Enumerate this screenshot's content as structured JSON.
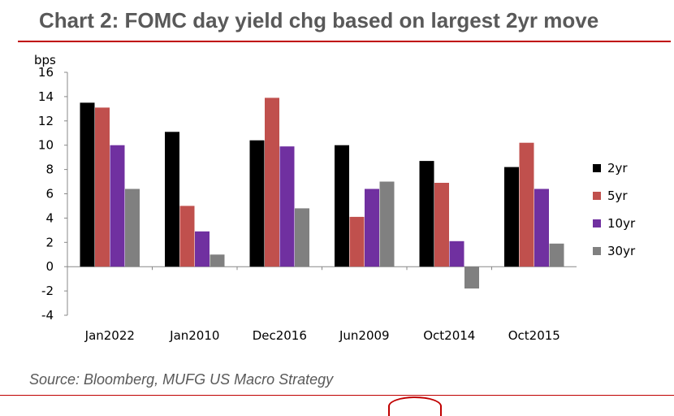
{
  "header": {
    "title": "Chart 2: FOMC day yield chg based on largest 2yr move"
  },
  "footer": {
    "source": "Source: Bloomberg, MUFG US Macro Strategy"
  },
  "chart_data": {
    "type": "bar",
    "title": "Chart 2: FOMC day yield chg based on largest 2yr move",
    "ylabel": "bps",
    "xlabel": "",
    "ylim": [
      -4,
      16
    ],
    "yticks": [
      16,
      14,
      12,
      10,
      8,
      6,
      4,
      2,
      0,
      -2,
      -4
    ],
    "categories": [
      "Jan2022",
      "Jan2010",
      "Dec2016",
      "Jun2009",
      "Oct2014",
      "Oct2015"
    ],
    "series": [
      {
        "name": "2yr",
        "color": "#000000",
        "values": [
          13.5,
          11.1,
          10.4,
          10.0,
          8.7,
          8.2
        ]
      },
      {
        "name": "5yr",
        "color": "#c0504d",
        "values": [
          13.1,
          5.0,
          13.9,
          4.1,
          6.9,
          10.2
        ]
      },
      {
        "name": "10yr",
        "color": "#7030a0",
        "values": [
          10.0,
          2.9,
          9.9,
          6.4,
          2.1,
          6.4
        ]
      },
      {
        "name": "30yr",
        "color": "#808080",
        "values": [
          6.4,
          1.0,
          4.8,
          7.0,
          -1.8,
          1.9
        ]
      }
    ],
    "grid": false,
    "legend_position": "right"
  }
}
